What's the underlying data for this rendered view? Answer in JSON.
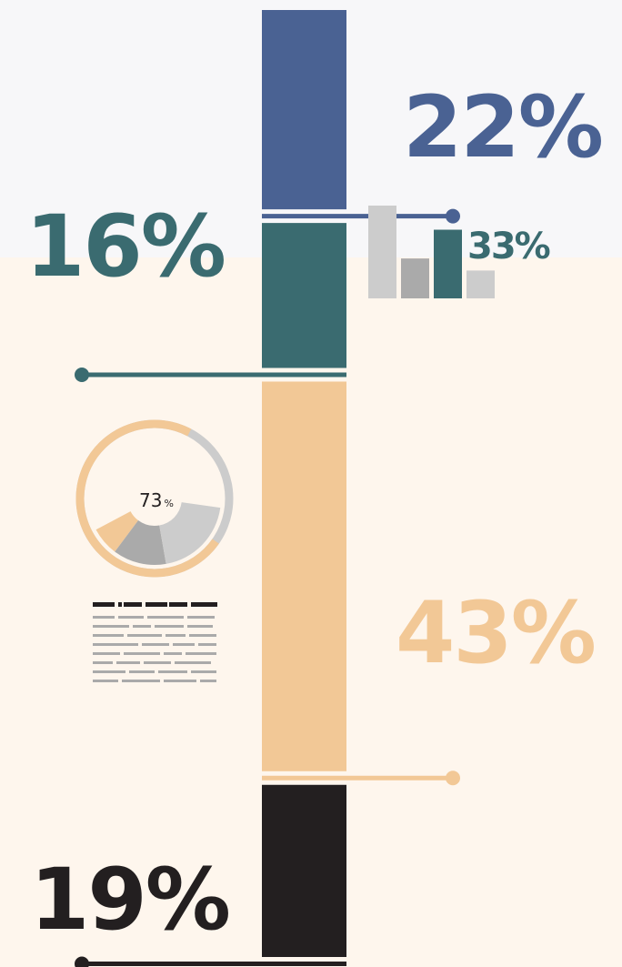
{
  "colors": {
    "blue": "#4a6293",
    "teal": "#3a6b70",
    "peach": "#f2c896",
    "black": "#231f20",
    "bg_top": "#f7f7f9",
    "bg_bottom": "#fef6ed",
    "gray_light": "#cccccc",
    "gray_mid": "#aaaaaa"
  },
  "chart_data": [
    {
      "type": "bar",
      "orientation": "vertical-stacked",
      "segments": [
        {
          "label": "22%",
          "value": 22,
          "color": "blue",
          "label_side": "right"
        },
        {
          "label": "16%",
          "value": 16,
          "color": "teal",
          "label_side": "left"
        },
        {
          "label": "43%",
          "value": 43,
          "color": "peach",
          "label_side": "right"
        },
        {
          "label": "19%",
          "value": 19,
          "color": "black",
          "label_side": "left"
        }
      ]
    },
    {
      "type": "bar",
      "label": "33%",
      "values": [
        100,
        43,
        74,
        30
      ],
      "colors": [
        "gray_light",
        "gray_mid",
        "teal",
        "gray_light"
      ],
      "highlight_index": 2
    },
    {
      "type": "pie",
      "label_value": "73",
      "label_unit": "%",
      "ring_value": 73,
      "slices": [
        {
          "value": 7,
          "color": "peach"
        },
        {
          "value": 13,
          "color": "gray_mid"
        },
        {
          "value": 20,
          "color": "gray_light"
        }
      ]
    }
  ]
}
